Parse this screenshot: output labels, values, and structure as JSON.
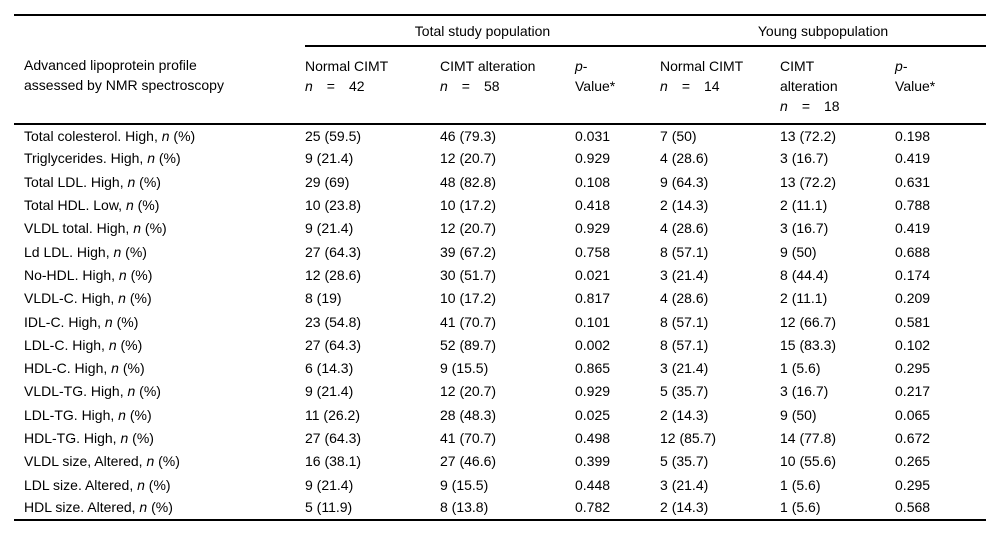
{
  "table": {
    "group_headers": [
      {
        "label": "Total study population"
      },
      {
        "label": "Young subpopulation"
      }
    ],
    "row_header": {
      "line1": "Advanced lipoprotein profile",
      "line2": "assessed by NMR spectroscopy"
    },
    "label_suffix": {
      "n_var": "n",
      "pct": "(%)"
    },
    "columns": [
      {
        "name": "normal-cimt-total",
        "kind": "count",
        "title_lines": [
          "Normal CIMT"
        ],
        "n_var": "n",
        "eq": "=",
        "count": "42"
      },
      {
        "name": "cimt-alteration-total",
        "kind": "count",
        "title_lines": [
          "CIMT alteration"
        ],
        "n_var": "n",
        "eq": "=",
        "count": "58"
      },
      {
        "name": "p-value-total",
        "kind": "pvalue",
        "p_var": "p",
        "dash": "-",
        "value_line": "Value*"
      },
      {
        "name": "normal-cimt-young",
        "kind": "count",
        "title_lines": [
          "Normal CIMT"
        ],
        "n_var": "n",
        "eq": "=",
        "count": "14"
      },
      {
        "name": "cimt-alteration-young",
        "kind": "count",
        "title_lines": [
          "CIMT",
          "alteration"
        ],
        "n_var": "n",
        "eq": "=",
        "count": "18"
      },
      {
        "name": "p-value-young",
        "kind": "pvalue",
        "p_var": "p",
        "dash": "-",
        "value_line": "Value*"
      }
    ],
    "rows": [
      {
        "label": "Total colesterol. High,",
        "cells": [
          "25 (59.5)",
          "46 (79.3)",
          "0.031",
          "7 (50)",
          "13 (72.2)",
          "0.198"
        ]
      },
      {
        "label": "Triglycerides. High,",
        "cells": [
          "9 (21.4)",
          "12 (20.7)",
          "0.929",
          "4 (28.6)",
          "3 (16.7)",
          "0.419"
        ]
      },
      {
        "label": "Total LDL. High,",
        "cells": [
          "29 (69)",
          "48 (82.8)",
          "0.108",
          "9 (64.3)",
          "13 (72.2)",
          "0.631"
        ]
      },
      {
        "label": "Total HDL. Low,",
        "cells": [
          "10 (23.8)",
          "10 (17.2)",
          "0.418",
          "2 (14.3)",
          "2 (11.1)",
          "0.788"
        ]
      },
      {
        "label": "VLDL total. High,",
        "cells": [
          "9 (21.4)",
          "12 (20.7)",
          "0.929",
          "4 (28.6)",
          "3 (16.7)",
          "0.419"
        ]
      },
      {
        "label": "Ld LDL. High,",
        "cells": [
          "27 (64.3)",
          "39 (67.2)",
          "0.758",
          "8 (57.1)",
          "9 (50)",
          "0.688"
        ]
      },
      {
        "label": "No-HDL. High,",
        "cells": [
          "12 (28.6)",
          "30 (51.7)",
          "0.021",
          "3 (21.4)",
          "8 (44.4)",
          "0.174"
        ]
      },
      {
        "label": "VLDL-C. High,",
        "cells": [
          "8 (19)",
          "10 (17.2)",
          "0.817",
          "4 (28.6)",
          "2 (11.1)",
          "0.209"
        ]
      },
      {
        "label": "IDL-C. High,",
        "cells": [
          "23 (54.8)",
          "41 (70.7)",
          "0.101",
          "8 (57.1)",
          "12 (66.7)",
          "0.581"
        ]
      },
      {
        "label": "LDL-C. High,",
        "cells": [
          "27 (64.3)",
          "52 (89.7)",
          "0.002",
          "8 (57.1)",
          "15 (83.3)",
          "0.102"
        ]
      },
      {
        "label": "HDL-C. High,",
        "cells": [
          "6 (14.3)",
          "9 (15.5)",
          "0.865",
          "3 (21.4)",
          "1 (5.6)",
          "0.295"
        ]
      },
      {
        "label": "VLDL-TG. High,",
        "cells": [
          "9 (21.4)",
          "12 (20.7)",
          "0.929",
          "5 (35.7)",
          "3 (16.7)",
          "0.217"
        ]
      },
      {
        "label": "LDL-TG. High,",
        "cells": [
          "11 (26.2)",
          "28 (48.3)",
          "0.025",
          "2 (14.3)",
          "9 (50)",
          "0.065"
        ]
      },
      {
        "label": "HDL-TG. High,",
        "cells": [
          "27 (64.3)",
          "41 (70.7)",
          "0.498",
          "12 (85.7)",
          "14 (77.8)",
          "0.672"
        ]
      },
      {
        "label": "VLDL size, Altered,",
        "cells": [
          "16 (38.1)",
          "27 (46.6)",
          "0.399",
          "5 (35.7)",
          "10 (55.6)",
          "0.265"
        ]
      },
      {
        "label": "LDL size. Altered,",
        "cells": [
          "9 (21.4)",
          "9 (15.5)",
          "0.448",
          "3 (21.4)",
          "1 (5.6)",
          "0.295"
        ]
      },
      {
        "label": "HDL size. Altered,",
        "cells": [
          "5 (11.9)",
          "8 (13.8)",
          "0.782",
          "2 (14.3)",
          "1 (5.6)",
          "0.568"
        ]
      }
    ]
  }
}
